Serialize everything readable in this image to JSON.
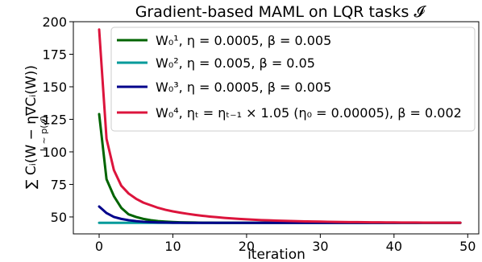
{
  "chart_data": {
    "type": "line",
    "title": "Gradient-based MAML on LQR tasks 𝓘",
    "xlabel": "iteration",
    "ylabel": "∑ Cᵢ(W − η∇Cᵢ(W))",
    "ylabel_sub": "Iᵢ ~ p(𝓘)",
    "xlim": [
      -3.5,
      51.5
    ],
    "ylim": [
      37,
      200
    ],
    "xticks": [
      0,
      10,
      20,
      30,
      40,
      50
    ],
    "yticks": [
      50,
      75,
      100,
      125,
      150,
      175,
      200
    ],
    "grid": false,
    "legend_position": "top-right",
    "x": [
      0,
      1,
      2,
      3,
      4,
      5,
      6,
      7,
      8,
      9,
      10,
      11,
      12,
      13,
      14,
      15,
      16,
      17,
      18,
      19,
      20,
      21,
      22,
      23,
      24,
      25,
      26,
      27,
      28,
      29,
      30,
      31,
      32,
      33,
      34,
      35,
      36,
      37,
      38,
      39,
      40,
      41,
      42,
      43,
      44,
      45,
      46,
      47,
      48,
      49
    ],
    "series": [
      {
        "name": "W₀¹, η = 0.0005, β = 0.005",
        "color": "#006400",
        "values": [
          129,
          79,
          66,
          57,
          52,
          50,
          48.5,
          47.5,
          46.8,
          46.4,
          46.1,
          45.9,
          45.8,
          45.7,
          45.6,
          45.55,
          45.5,
          45.5,
          45.5,
          45.5,
          45.5,
          45.5,
          45.5,
          45.5,
          45.5,
          45.5,
          45.5,
          45.5,
          45.5,
          45.5,
          45.5,
          45.5,
          45.5,
          45.5,
          45.5,
          45.5,
          45.5,
          45.5,
          45.5,
          45.5,
          45.5,
          45.5,
          45.5,
          45.5,
          45.5,
          45.5,
          45.5,
          45.5,
          45.5,
          45.5
        ]
      },
      {
        "name": "W₀², η = 0.005, β = 0.05",
        "color": "#009a9a",
        "values": [
          45.5,
          45.5,
          45.5,
          45.5,
          45.5,
          45.5,
          45.5,
          45.5,
          45.5,
          45.5,
          45.5,
          45.5,
          45.5,
          45.5,
          45.5,
          45.5,
          45.5,
          45.5,
          45.5,
          45.5,
          45.5,
          45.5,
          45.5,
          45.5,
          45.5,
          45.5,
          45.5,
          45.5,
          45.5,
          45.5,
          45.5,
          45.5,
          45.5,
          45.5,
          45.5,
          45.5,
          45.5,
          45.5,
          45.5,
          45.5,
          45.5,
          45.5,
          45.5,
          45.5,
          45.5,
          45.5,
          45.5,
          45.5,
          45.5,
          45.5
        ]
      },
      {
        "name": "W₀³, η = 0.0005, β = 0.005",
        "color": "#00008b",
        "values": [
          58,
          53,
          50,
          48.5,
          47.5,
          46.8,
          46.3,
          46,
          45.8,
          45.7,
          45.6,
          45.55,
          45.5,
          45.5,
          45.5,
          45.5,
          45.5,
          45.5,
          45.5,
          45.5,
          45.5,
          45.5,
          45.5,
          45.5,
          45.5,
          45.5,
          45.5,
          45.5,
          45.5,
          45.5,
          45.5,
          45.5,
          45.5,
          45.5,
          45.5,
          45.5,
          45.5,
          45.5,
          45.5,
          45.5,
          45.5,
          45.5,
          45.5,
          45.5,
          45.5,
          45.5,
          45.5,
          45.5,
          45.5,
          45.5
        ]
      },
      {
        "name": "W₀⁴, ηₜ = ηₜ₋₁ × 1.05 (η₀ = 0.00005), β = 0.002",
        "color": "#dc143c",
        "values": [
          194,
          110,
          86,
          74,
          68,
          64,
          61,
          59,
          57,
          55.5,
          54.3,
          53.3,
          52.4,
          51.6,
          50.9,
          50.3,
          49.8,
          49.3,
          48.9,
          48.5,
          48.2,
          47.9,
          47.6,
          47.4,
          47.2,
          47,
          46.9,
          46.7,
          46.6,
          46.5,
          46.4,
          46.3,
          46.2,
          46.1,
          46.05,
          46,
          45.95,
          45.9,
          45.85,
          45.8,
          45.8,
          45.75,
          45.7,
          45.7,
          45.65,
          45.65,
          45.6,
          45.6,
          45.6,
          45.6
        ]
      }
    ]
  }
}
